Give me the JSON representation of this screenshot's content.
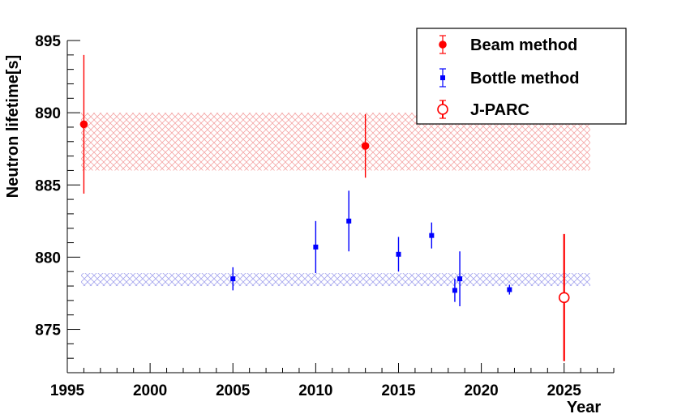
{
  "chart_data": {
    "type": "scatter",
    "title": "",
    "xlabel": "Year",
    "ylabel": "Neutron lifetime[s]",
    "xlim": [
      1995,
      2028
    ],
    "ylim": [
      872,
      895
    ],
    "x_ticks": [
      "1995",
      "2000",
      "2005",
      "2010",
      "2015",
      "2020",
      "2025"
    ],
    "y_ticks": [
      "875",
      "880",
      "885",
      "890",
      "895"
    ],
    "grid": false,
    "legend_position": "top-right",
    "bands": [
      {
        "name": "beam-band",
        "low": 886.0,
        "high": 890.0,
        "color": "#f4a6a6"
      },
      {
        "name": "bottle-band",
        "low": 878.0,
        "high": 878.9,
        "color": "#a6a6ee"
      }
    ],
    "series": [
      {
        "name": "Beam method",
        "marker": "circle",
        "color": "#ff0000",
        "points": [
          {
            "x": 1996.0,
            "y": 889.2,
            "err": 4.8
          },
          {
            "x": 2013.0,
            "y": 887.7,
            "err": 2.2
          }
        ]
      },
      {
        "name": "Bottle method",
        "marker": "square",
        "color": "#0000ff",
        "points": [
          {
            "x": 2005.0,
            "y": 878.5,
            "err": 0.8
          },
          {
            "x": 2010.0,
            "y": 880.7,
            "err": 1.8
          },
          {
            "x": 2012.0,
            "y": 882.5,
            "err": 2.1
          },
          {
            "x": 2015.0,
            "y": 880.2,
            "err": 1.2
          },
          {
            "x": 2017.0,
            "y": 881.5,
            "err": 0.9
          },
          {
            "x": 2018.4,
            "y": 877.7,
            "err": 0.8
          },
          {
            "x": 2018.7,
            "y": 878.5,
            "err": 1.9
          },
          {
            "x": 2021.7,
            "y": 877.75,
            "err": 0.34
          }
        ]
      },
      {
        "name": "J-PARC",
        "marker": "open-circle",
        "color": "#ff0000",
        "points": [
          {
            "x": 2025.0,
            "y": 877.2,
            "err": 4.4
          }
        ]
      }
    ]
  }
}
